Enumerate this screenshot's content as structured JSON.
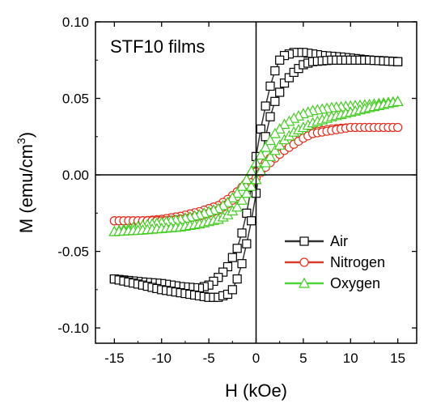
{
  "chart_data": {
    "type": "scatter",
    "title": "",
    "annotation": "STF10 films",
    "xlabel": "H (kOe)",
    "ylabel": "M (emu/cm",
    "ylabel_sup": "3",
    "ylabel_close": ")",
    "xlim": [
      -17,
      17
    ],
    "ylim": [
      -0.11,
      0.1
    ],
    "xticks": [
      -15,
      -10,
      -5,
      0,
      5,
      10,
      15
    ],
    "yticks": [
      -0.1,
      -0.05,
      0.0,
      0.05,
      0.1
    ],
    "xtick_labels": [
      "-15",
      "-10",
      "-5",
      "0",
      "5",
      "10",
      "15"
    ],
    "ytick_labels": [
      "-0.10",
      "-0.05",
      "0.00",
      "0.05",
      "0.10"
    ],
    "legend_position": "bottom-right",
    "series": [
      {
        "name": "Air",
        "marker": "square",
        "color": "#000000",
        "line_color": "#333333",
        "branches": [
          {
            "x": [
              15,
              12,
              9,
              7,
              6,
              5,
              4,
              3,
              2.5,
              2,
              1.5,
              1,
              0.5,
              0,
              -0.5,
              -1,
              -1.5,
              -2,
              -3,
              -4,
              -5,
              -6,
              -8,
              -10,
              -12,
              -15
            ],
            "y": [
              0.074,
              0.075,
              0.077,
              0.078,
              0.079,
              0.08,
              0.08,
              0.078,
              0.075,
              0.068,
              0.058,
              0.045,
              0.03,
              0.012,
              -0.008,
              -0.025,
              -0.038,
              -0.048,
              -0.06,
              -0.067,
              -0.072,
              -0.074,
              -0.073,
              -0.071,
              -0.07,
              -0.068
            ]
          },
          {
            "x": [
              -15,
              -12,
              -10,
              -8,
              -6,
              -5,
              -4,
              -3,
              -2.5,
              -2,
              -1.5,
              -1,
              -0.5,
              0,
              0.5,
              1,
              1.5,
              2,
              3,
              4,
              5,
              6,
              8,
              10,
              12,
              15
            ],
            "y": [
              -0.068,
              -0.072,
              -0.075,
              -0.077,
              -0.079,
              -0.08,
              -0.08,
              -0.078,
              -0.075,
              -0.068,
              -0.058,
              -0.045,
              -0.03,
              -0.012,
              0.008,
              0.025,
              0.038,
              0.048,
              0.06,
              0.067,
              0.072,
              0.074,
              0.075,
              0.075,
              0.075,
              0.074
            ]
          }
        ]
      },
      {
        "name": "Nitrogen",
        "marker": "circle",
        "color": "#e03020",
        "line_color": "#d93a2a",
        "branches": [
          {
            "x": [
              15,
              12,
              10,
              8,
              6,
              5,
              4,
              3,
              2,
              1,
              0,
              -1,
              -2,
              -3,
              -4,
              -6,
              -8,
              -10,
              -12,
              -15
            ],
            "y": [
              0.031,
              0.031,
              0.031,
              0.03,
              0.028,
              0.026,
              0.023,
              0.019,
              0.014,
              0.008,
              0.002,
              -0.005,
              -0.011,
              -0.016,
              -0.02,
              -0.024,
              -0.027,
              -0.029,
              -0.03,
              -0.03
            ]
          },
          {
            "x": [
              -15,
              -12,
              -10,
              -8,
              -6,
              -4,
              -3,
              -2,
              -1,
              0,
              1,
              2,
              3,
              4,
              5,
              6,
              8,
              10,
              12,
              15
            ],
            "y": [
              -0.03,
              -0.03,
              -0.03,
              -0.029,
              -0.027,
              -0.023,
              -0.019,
              -0.014,
              -0.008,
              -0.002,
              0.005,
              0.011,
              0.016,
              0.02,
              0.024,
              0.027,
              0.029,
              0.031,
              0.031,
              0.031
            ]
          }
        ]
      },
      {
        "name": "Oxygen",
        "marker": "triangle",
        "color": "#44cc22",
        "line_color": "#4dd23a",
        "branches": [
          {
            "x": [
              15,
              12,
              10,
              8,
              6,
              5,
              4,
              3,
              2,
              1,
              0,
              -1,
              -2,
              -3,
              -4,
              -6,
              -8,
              -10,
              -12,
              -15
            ],
            "y": [
              0.048,
              0.046,
              0.045,
              0.044,
              0.042,
              0.04,
              0.037,
              0.033,
              0.027,
              0.018,
              0.008,
              -0.003,
              -0.012,
              -0.018,
              -0.022,
              -0.026,
              -0.029,
              -0.031,
              -0.033,
              -0.037
            ]
          },
          {
            "x": [
              -15,
              -12,
              -10,
              -8,
              -6,
              -4,
              -3,
              -2,
              -1,
              0,
              1,
              2,
              3,
              4,
              5,
              6,
              8,
              10,
              12,
              15
            ],
            "y": [
              -0.037,
              -0.036,
              -0.035,
              -0.034,
              -0.032,
              -0.029,
              -0.026,
              -0.021,
              -0.012,
              -0.003,
              0.008,
              0.016,
              0.023,
              0.028,
              0.031,
              0.034,
              0.038,
              0.041,
              0.044,
              0.048
            ]
          }
        ]
      }
    ]
  }
}
